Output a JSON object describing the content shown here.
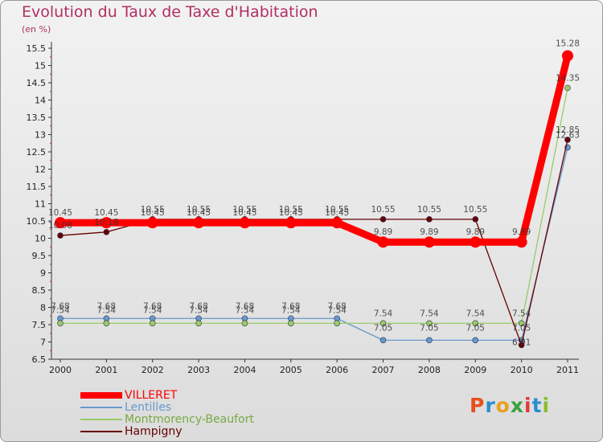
{
  "title": "Evolution du Taux de Taxe d'Habitation",
  "subtitle": "(en %)",
  "brand": {
    "text": "Proxiti",
    "colors": [
      "#e8501a",
      "#2a8fd0",
      "#e8a020",
      "#3aa040",
      "#e03c3c",
      "#2a8fd0",
      "#8bbd2a"
    ]
  },
  "chart_data": {
    "type": "line",
    "title": "Evolution du Taux de Taxe d'Habitation",
    "ylabel": "(en %)",
    "xlabel": "",
    "ylim": [
      6.5,
      15.5
    ],
    "yticks": [
      "6.5",
      "7",
      "7.5",
      "8",
      "8.5",
      "9",
      "9.5",
      "10",
      "10.5",
      "11",
      "11.5",
      "12",
      "12.5",
      "13",
      "13.5",
      "14",
      "14.5",
      "15",
      "15.5"
    ],
    "categories": [
      "2000",
      "2001",
      "2002",
      "2003",
      "2004",
      "2005",
      "2006",
      "2007",
      "2008",
      "2009",
      "2010",
      "2011"
    ],
    "grid": false,
    "legend_position": "bottom-left",
    "series": [
      {
        "name": "VILLERET",
        "color": "#ff0000",
        "values": [
          10.45,
          10.45,
          10.45,
          10.45,
          10.45,
          10.45,
          10.45,
          9.89,
          9.89,
          9.89,
          9.89,
          15.28
        ],
        "labels": [
          "10.45",
          "10.45",
          "10.45",
          "10.45",
          "10.45",
          "10.45",
          "10.45",
          "9.89",
          "9.89",
          "9.89",
          "9.89",
          "15.28"
        ]
      },
      {
        "name": "Lentilles",
        "color": "#6699cc",
        "values": [
          7.68,
          7.68,
          7.68,
          7.68,
          7.68,
          7.68,
          7.68,
          7.05,
          7.05,
          7.05,
          7.05,
          12.63
        ],
        "labels": [
          "7.68",
          "7.68",
          "7.68",
          "7.68",
          "7.68",
          "7.68",
          "7.68",
          "7.05",
          "7.05",
          "7.05",
          "7.05",
          "12.63"
        ]
      },
      {
        "name": "Montmorency-Beaufort",
        "color": "#99cc66",
        "values": [
          7.54,
          7.54,
          7.54,
          7.54,
          7.54,
          7.54,
          7.54,
          7.54,
          7.54,
          7.54,
          7.54,
          14.35
        ],
        "labels": [
          "7.54",
          "7.54",
          "7.54",
          "7.54",
          "7.54",
          "7.54",
          "7.54",
          "7.54",
          "7.54",
          "7.54",
          "7.54",
          "14.35"
        ]
      },
      {
        "name": "Hampigny",
        "color": "#660000",
        "values": [
          10.08,
          10.18,
          10.55,
          10.55,
          10.55,
          10.55,
          10.55,
          10.55,
          10.55,
          10.55,
          6.91,
          12.85
        ],
        "labels": [
          "10.08",
          "10.18",
          "10.55",
          "10.55",
          "10.55",
          "10.55",
          "10.55",
          "10.55",
          "10.55",
          "10.55",
          "6.91",
          "12.85"
        ]
      }
    ]
  }
}
